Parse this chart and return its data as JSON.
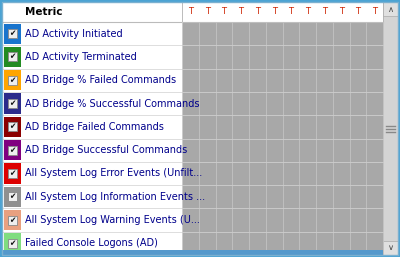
{
  "rows": [
    {
      "label": "AD Activity Initiated",
      "checkbox_color": "#1874CD"
    },
    {
      "label": "AD Activity Terminated",
      "checkbox_color": "#228B22"
    },
    {
      "label": "AD Bridge % Failed Commands",
      "checkbox_color": "#FFA500"
    },
    {
      "label": "AD Bridge % Successful Commands",
      "checkbox_color": "#2B2B8B"
    },
    {
      "label": "AD Bridge Failed Commands",
      "checkbox_color": "#8B0000"
    },
    {
      "label": "AD Bridge Successful Commands",
      "checkbox_color": "#800080"
    },
    {
      "label": "All System Log Error Events (Unfilt...",
      "checkbox_color": "#DD0000"
    },
    {
      "label": "All System Log Information Events ...",
      "checkbox_color": "#909090"
    },
    {
      "label": "All System Log Warning Events (U...",
      "checkbox_color": "#E8A080"
    },
    {
      "label": "Failed Console Logons (AD)",
      "checkbox_color": "#80DD80"
    }
  ],
  "header_label": "Metric",
  "col_header": "T",
  "num_t_cols": 12,
  "outer_bg": "#4BA3D3",
  "table_bg": "#FFFFFF",
  "header_bg": "#FFFFFF",
  "grid_bg": "#A8A8A8",
  "grid_line_color": "#C0C0C0",
  "scroll_bg": "#D4D4D4",
  "scroll_border": "#A0A0A0",
  "text_color": "#00008B",
  "t_color": "#CC2200",
  "row_sep_color": "#D0D0D0",
  "header_sep_color": "#BBBBBB"
}
